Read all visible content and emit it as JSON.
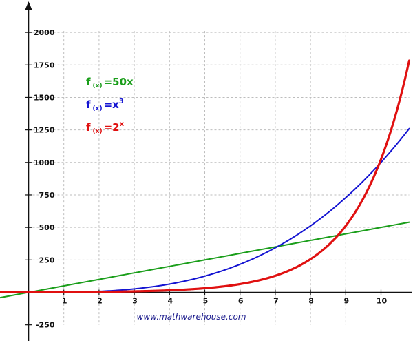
{
  "chart_data": {
    "type": "line",
    "x_ticks": [
      "1",
      "2",
      "3",
      "4",
      "5",
      "6",
      "7",
      "8",
      "9",
      "10"
    ],
    "y_ticks": [
      "2000",
      "1750",
      "1500",
      "1250",
      "1000",
      "750",
      "500",
      "250",
      "-250"
    ],
    "xlim": [
      -0.9,
      10.85
    ],
    "ylim": [
      -420,
      2260
    ],
    "grid": true,
    "series": [
      {
        "color": "#1a9e1a",
        "label_parts": [
          "f",
          "(x)",
          "=50x",
          ""
        ],
        "x": [
          -1,
          0,
          1,
          2,
          3,
          4,
          5,
          6,
          7,
          8,
          9,
          10,
          10.8
        ],
        "y": [
          -50,
          0,
          50,
          100,
          150,
          200,
          250,
          300,
          350,
          400,
          450,
          500,
          540
        ]
      },
      {
        "color": "#1414d2",
        "label_parts": [
          "f",
          "(x)",
          "=x",
          "3"
        ],
        "x": [
          -1,
          0,
          1,
          2,
          3,
          4,
          5,
          6,
          7,
          8,
          9,
          10,
          10.8
        ],
        "y": [
          -1,
          0,
          1,
          8,
          27,
          64,
          125,
          216,
          343,
          512,
          729,
          1000,
          1260
        ]
      },
      {
        "color": "#e01010",
        "label_parts": [
          "f",
          "(x)",
          "=2",
          "x"
        ],
        "x": [
          -1,
          0,
          1,
          2,
          3,
          4,
          5,
          6,
          7,
          8,
          9,
          10,
          10.8
        ],
        "y": [
          0.5,
          1,
          2,
          4,
          8,
          16,
          32,
          64,
          128,
          256,
          512,
          1024,
          1783
        ]
      }
    ]
  },
  "watermark": "www.mathwarehouse.com"
}
